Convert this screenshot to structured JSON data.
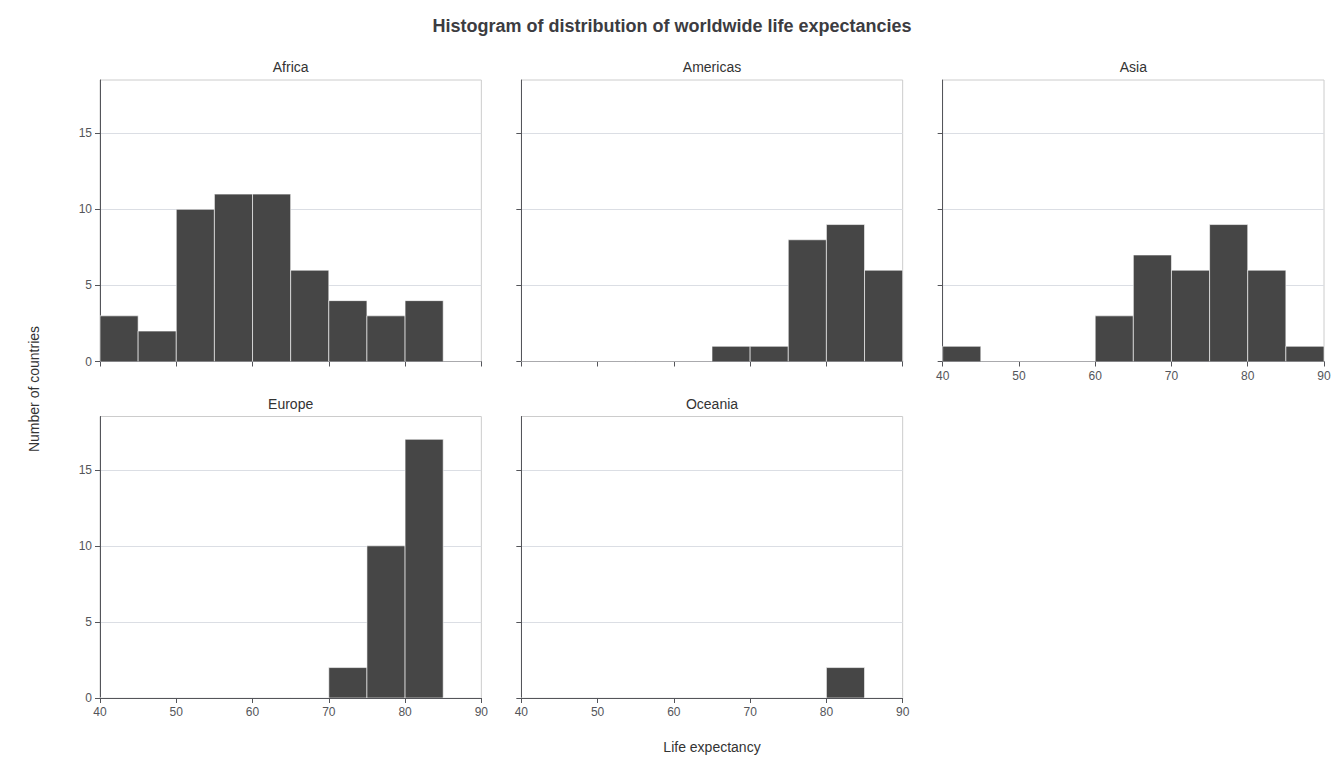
{
  "chart_data": {
    "type": "histogram",
    "title": "Histogram of distribution of worldwide life expectancies",
    "xlabel": "Life expectancy",
    "ylabel": "Number of countries",
    "bins": [
      40,
      45,
      50,
      55,
      60,
      65,
      70,
      75,
      80,
      85,
      90
    ],
    "series": [
      {
        "name": "Africa",
        "values": [
          3,
          2,
          10,
          11,
          11,
          6,
          4,
          3,
          4,
          0
        ]
      },
      {
        "name": "Americas",
        "values": [
          0,
          0,
          0,
          0,
          0,
          1,
          1,
          8,
          9,
          6
        ]
      },
      {
        "name": "Asia",
        "values": [
          1,
          0,
          0,
          0,
          3,
          7,
          6,
          9,
          6,
          1
        ]
      },
      {
        "name": "Europe",
        "values": [
          0,
          0,
          0,
          0,
          0,
          0,
          2,
          10,
          17,
          0
        ]
      },
      {
        "name": "Oceania",
        "values": [
          0,
          0,
          0,
          0,
          0,
          0,
          0,
          0,
          2,
          0
        ]
      }
    ],
    "color": "#464646",
    "xlim": [
      40,
      90
    ],
    "xticks": [
      40,
      50,
      60,
      70,
      80,
      90
    ],
    "ylim": [
      0,
      18.5
    ],
    "yticks": [
      0,
      5,
      10,
      15
    ],
    "grid": true
  }
}
